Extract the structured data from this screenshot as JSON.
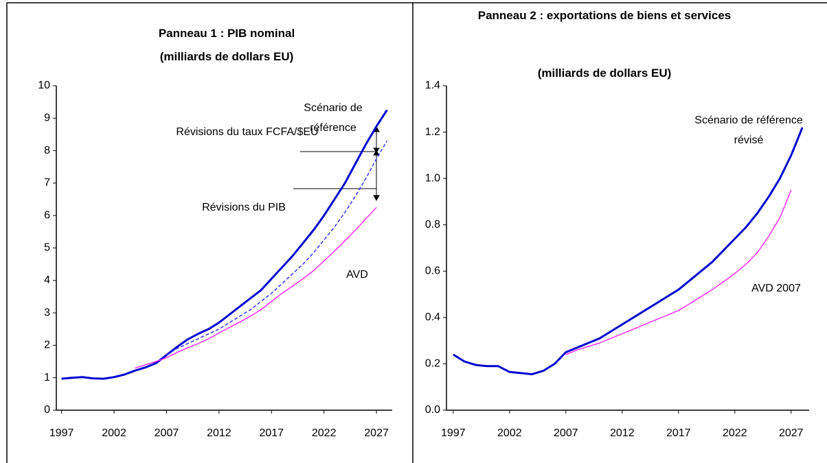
{
  "chart_data": [
    {
      "type": "line",
      "title": "Panneau 1 : PIB nominal",
      "subtitle": "(milliards de dollars EU)",
      "x": [
        1997,
        1998,
        1999,
        2000,
        2001,
        2002,
        2003,
        2004,
        2005,
        2006,
        2007,
        2008,
        2009,
        2010,
        2011,
        2012,
        2013,
        2014,
        2015,
        2016,
        2017,
        2018,
        2019,
        2020,
        2021,
        2022,
        2023,
        2024,
        2025,
        2026,
        2027,
        2028
      ],
      "series": [
        {
          "name": "Scénario de référence",
          "color": "#0000d0",
          "style": "solid",
          "values": [
            0.97,
            1.0,
            1.02,
            0.98,
            0.97,
            1.02,
            1.1,
            1.22,
            1.32,
            1.45,
            1.7,
            1.95,
            2.18,
            2.35,
            2.5,
            2.7,
            2.95,
            3.2,
            3.45,
            3.7,
            4.05,
            4.4,
            4.75,
            5.15,
            5.55,
            6.0,
            6.5,
            7.0,
            7.6,
            8.2,
            8.75,
            9.25
          ]
        },
        {
          "color": "#3333ff",
          "style": "dashed",
          "values": [
            null,
            null,
            null,
            null,
            null,
            null,
            null,
            null,
            null,
            null,
            1.7,
            1.9,
            2.05,
            2.2,
            2.35,
            2.5,
            2.7,
            2.9,
            3.1,
            3.35,
            3.6,
            3.9,
            4.2,
            4.5,
            4.85,
            5.25,
            5.65,
            6.1,
            6.6,
            7.15,
            7.75,
            8.3
          ]
        },
        {
          "name": "AVD",
          "color": "#ff00ff",
          "style": "solid",
          "values": [
            null,
            null,
            null,
            null,
            null,
            null,
            null,
            1.3,
            1.4,
            1.5,
            1.62,
            1.78,
            1.92,
            2.05,
            2.2,
            2.38,
            2.55,
            2.72,
            2.9,
            3.1,
            3.35,
            3.6,
            3.82,
            4.05,
            4.3,
            4.6,
            4.9,
            5.22,
            5.55,
            5.9,
            6.25,
            null
          ]
        }
      ],
      "annotations": [
        "Révisions du taux FCFA/$EU",
        "Révisions du PIB"
      ],
      "xlim": [
        1996.5,
        2028.5
      ],
      "xticks": [
        1997,
        2002,
        2007,
        2012,
        2017,
        2022,
        2027
      ],
      "ylim": [
        0,
        10
      ],
      "yticks": [
        0,
        1,
        2,
        3,
        4,
        5,
        6,
        7,
        8,
        9,
        10
      ],
      "grid": false
    },
    {
      "type": "line",
      "title": "Panneau 2 : exportations de biens et services",
      "subtitle": "(milliards de dollars EU)",
      "x": [
        1997,
        1998,
        1999,
        2000,
        2001,
        2002,
        2003,
        2004,
        2005,
        2006,
        2007,
        2008,
        2009,
        2010,
        2011,
        2012,
        2013,
        2014,
        2015,
        2016,
        2017,
        2018,
        2019,
        2020,
        2021,
        2022,
        2023,
        2024,
        2025,
        2026,
        2027,
        2028
      ],
      "series": [
        {
          "name": "Scénario de référence révisé",
          "color": "#0000d0",
          "style": "solid",
          "values": [
            0.24,
            0.21,
            0.195,
            0.19,
            0.19,
            0.165,
            0.16,
            0.155,
            0.17,
            0.2,
            0.25,
            0.27,
            0.29,
            0.31,
            0.34,
            0.37,
            0.4,
            0.43,
            0.46,
            0.49,
            0.52,
            0.56,
            0.6,
            0.64,
            0.69,
            0.74,
            0.79,
            0.85,
            0.92,
            1.0,
            1.1,
            1.22
          ]
        },
        {
          "name": "AVD 2007",
          "color": "#ff00ff",
          "style": "solid",
          "values": [
            null,
            null,
            null,
            null,
            null,
            null,
            null,
            null,
            null,
            null,
            0.24,
            0.26,
            0.275,
            0.29,
            0.31,
            0.33,
            0.35,
            0.37,
            0.39,
            0.41,
            0.43,
            0.46,
            0.49,
            0.52,
            0.555,
            0.59,
            0.63,
            0.68,
            0.75,
            0.83,
            0.95,
            null
          ]
        }
      ],
      "xlim": [
        1996.4,
        2028.6
      ],
      "xticks": [
        1997,
        2002,
        2007,
        2012,
        2017,
        2022,
        2027
      ],
      "ylim": [
        0,
        1.4
      ],
      "yticks": [
        {
          "value": 0,
          "label": "0.0"
        },
        0.2,
        0.4,
        0.6,
        0.8,
        {
          "value": 1,
          "label": "1.0"
        },
        1.2,
        1.4
      ],
      "grid": false
    }
  ]
}
